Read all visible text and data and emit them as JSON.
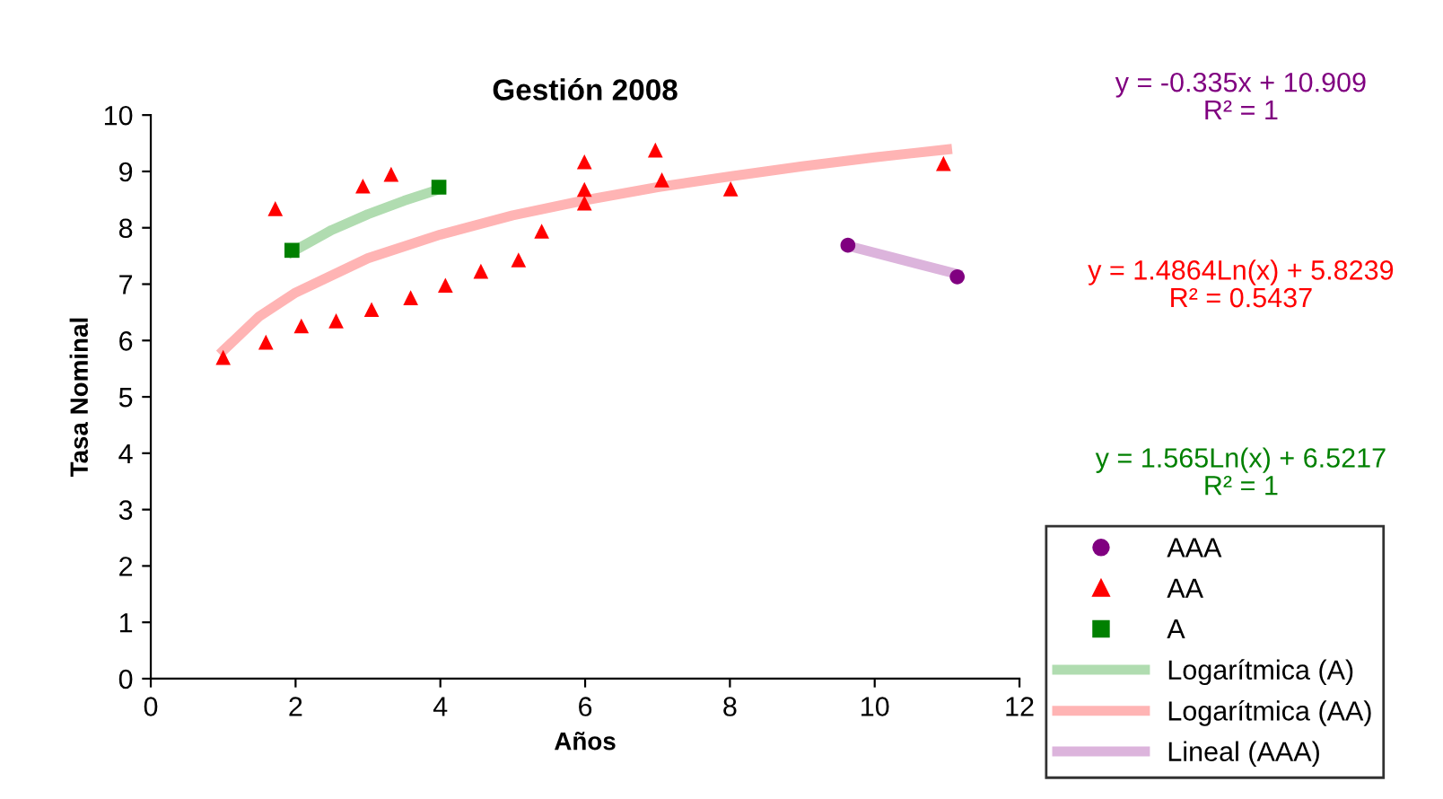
{
  "chart_data": {
    "type": "scatter",
    "title": "Gestión 2008",
    "xlabel": "Años",
    "ylabel": "Tasa Nominal",
    "xlim": [
      0,
      12
    ],
    "xticks": [
      0,
      2,
      4,
      6,
      8,
      10,
      12
    ],
    "ylim": [
      0,
      10
    ],
    "yticks": [
      0,
      1,
      2,
      3,
      4,
      5,
      6,
      7,
      8,
      9,
      10
    ],
    "grid": false,
    "legend": "bottom right",
    "series": [
      {
        "name": "AAA",
        "marker": "circle",
        "color": "#800080",
        "x": [
          9.63,
          11.14
        ],
        "values": [
          7.69,
          7.13
        ]
      },
      {
        "name": "AA",
        "marker": "triangle",
        "color": "#ff0000",
        "x": [
          1.0,
          1.59,
          1.72,
          2.08,
          2.56,
          2.93,
          3.05,
          3.32,
          3.59,
          4.07,
          4.56,
          5.08,
          5.4,
          5.99,
          5.99,
          5.99,
          6.97,
          7.06,
          8.01,
          10.95
        ],
        "values": [
          5.7,
          5.97,
          8.34,
          6.26,
          6.35,
          8.74,
          6.55,
          8.95,
          6.76,
          6.98,
          7.23,
          7.43,
          7.94,
          9.17,
          8.68,
          8.44,
          9.38,
          8.85,
          8.69,
          9.14
        ]
      },
      {
        "name": "A",
        "marker": "square",
        "color": "#008000",
        "x": [
          1.95,
          3.98
        ],
        "values": [
          7.6,
          8.72
        ]
      },
      {
        "name": "Logarítmica (A)",
        "type": "line",
        "line_style": "solid",
        "color": "#b0dcb0",
        "x": [
          1.95,
          2.5,
          3.0,
          3.5,
          3.98
        ],
        "values": [
          7.57,
          7.96,
          8.24,
          8.48,
          8.68
        ]
      },
      {
        "name": "Logarítmica (AA)",
        "type": "line",
        "line_style": "solid",
        "color": "#ffb4b4",
        "x": [
          1,
          1.5,
          2,
          3,
          4,
          5,
          6,
          7,
          8,
          9,
          10,
          11
        ],
        "values": [
          5.82,
          6.43,
          6.85,
          7.46,
          7.88,
          8.22,
          8.49,
          8.72,
          8.91,
          9.09,
          9.25,
          9.39
        ]
      },
      {
        "name": "Lineal (AAA)",
        "type": "line",
        "line_style": "solid",
        "color": "#dcb4dc",
        "x": [
          9.63,
          11.14
        ],
        "values": [
          7.68,
          7.18
        ]
      }
    ],
    "annotations": [
      "y = -0.335x + 10.909\nR² = 1",
      "y = 1.4864Ln(x) + 5.8239\nR² = 0.5437",
      "y = 1.565Ln(x) + 6.5217\nR² = 1"
    ]
  }
}
